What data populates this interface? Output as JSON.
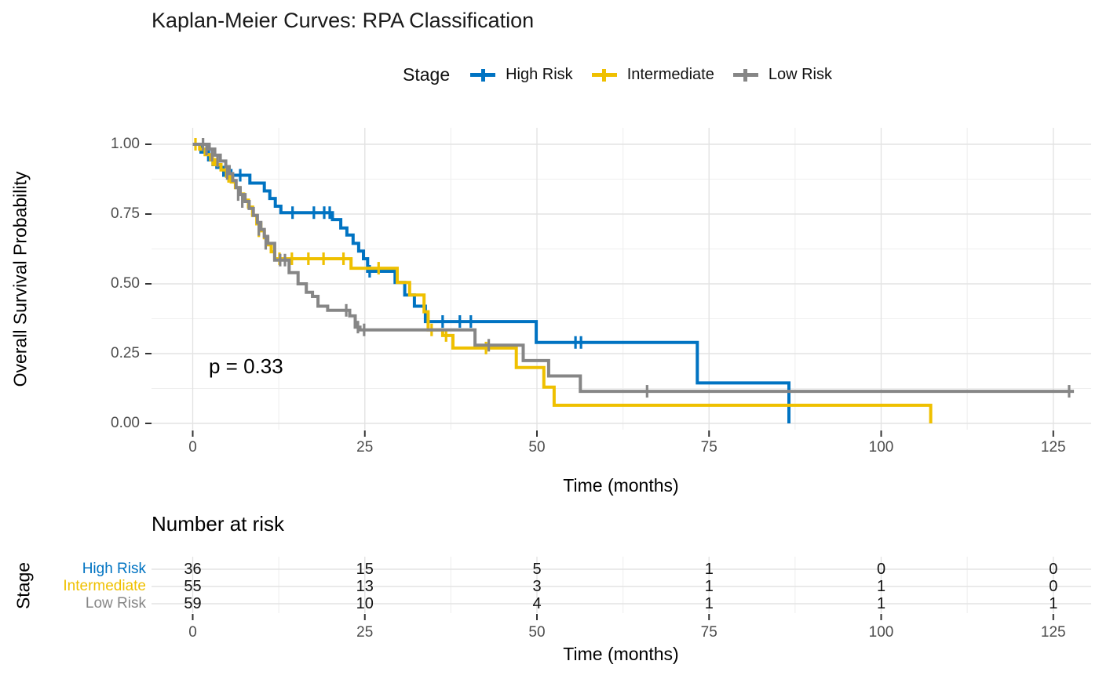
{
  "title": "Kaplan-Meier Curves: RPA Classification",
  "legend": {
    "label": "Stage",
    "items": [
      {
        "label": "High Risk"
      },
      {
        "label": "Intermediate"
      },
      {
        "label": "Low Risk"
      }
    ]
  },
  "y_axis": {
    "label": "Overall Survival Probability",
    "ticks": [
      "1.00",
      "0.75",
      "0.50",
      "0.25",
      "0.00"
    ],
    "tick_values": [
      1.0,
      0.75,
      0.5,
      0.25,
      0.0
    ]
  },
  "x_axis": {
    "label": "Time (months)",
    "ticks": [
      "0",
      "25",
      "50",
      "75",
      "100",
      "125"
    ],
    "tick_values": [
      0,
      25,
      50,
      75,
      100,
      125
    ]
  },
  "annotation": {
    "p_value": "p = 0.33"
  },
  "risk_table": {
    "title": "Number at risk",
    "axis_label": "Stage",
    "x_label": "Time (months)",
    "x_ticks": [
      "0",
      "25",
      "50",
      "75",
      "100",
      "125"
    ],
    "rows": [
      {
        "label": "High Risk",
        "values": [
          "36",
          "15",
          "5",
          "1",
          "0",
          "0"
        ]
      },
      {
        "label": "Intermediate",
        "values": [
          "55",
          "13",
          "3",
          "1",
          "1",
          "0"
        ]
      },
      {
        "label": "Low Risk",
        "values": [
          "59",
          "10",
          "4",
          "1",
          "1",
          "1"
        ]
      }
    ]
  },
  "chart_data": {
    "type": "line",
    "subtype": "kaplan-meier-step",
    "title": "Kaplan-Meier Curves: RPA Classification",
    "xlabel": "Time (months)",
    "ylabel": "Overall Survival Probability",
    "xlim": [
      0,
      130
    ],
    "ylim": [
      0,
      1
    ],
    "grid": true,
    "p_value": 0.33,
    "x_major_ticks": [
      0,
      25,
      50,
      75,
      100,
      125
    ],
    "x_minor_ticks": [
      12.5,
      37.5,
      62.5,
      87.5,
      112.5
    ],
    "y_major_ticks": [
      0,
      0.25,
      0.5,
      0.75,
      1.0
    ],
    "y_minor_ticks": [
      0.125,
      0.375,
      0.625,
      0.875
    ],
    "series": [
      {
        "name": "High Risk",
        "color": "#0073C2",
        "end": 86.6,
        "steps": [
          [
            0,
            1
          ],
          [
            1.2,
            0.972
          ],
          [
            2.3,
            0.944
          ],
          [
            3.5,
            0.917
          ],
          [
            4.5,
            0.889
          ],
          [
            8.3,
            0.861
          ],
          [
            10.4,
            0.833
          ],
          [
            11.2,
            0.806
          ],
          [
            12.0,
            0.778
          ],
          [
            12.8,
            0.755
          ],
          [
            20.3,
            0.73
          ],
          [
            21.5,
            0.7
          ],
          [
            22.4,
            0.675
          ],
          [
            23.3,
            0.645
          ],
          [
            24.1,
            0.617
          ],
          [
            24.8,
            0.59
          ],
          [
            25.4,
            0.545
          ],
          [
            29.4,
            0.505
          ],
          [
            30.8,
            0.46
          ],
          [
            32.2,
            0.42
          ],
          [
            33.8,
            0.365
          ],
          [
            49.9,
            0.29
          ],
          [
            73.3,
            0.145
          ],
          [
            86.6,
            0
          ]
        ],
        "censors": [
          [
            2.9,
            0.944
          ],
          [
            5.6,
            0.889
          ],
          [
            6.9,
            0.889
          ],
          [
            14.5,
            0.755
          ],
          [
            17.6,
            0.755
          ],
          [
            19.1,
            0.755
          ],
          [
            19.9,
            0.755
          ],
          [
            25.7,
            0.545
          ],
          [
            36.3,
            0.365
          ],
          [
            38.8,
            0.365
          ],
          [
            40.4,
            0.365
          ],
          [
            55.6,
            0.29
          ],
          [
            56.4,
            0.29
          ]
        ]
      },
      {
        "name": "Intermediate",
        "color": "#EFC000",
        "end": 107.2,
        "steps": [
          [
            0,
            1
          ],
          [
            1.0,
            0.982
          ],
          [
            1.8,
            0.963
          ],
          [
            2.6,
            0.945
          ],
          [
            3.3,
            0.927
          ],
          [
            4.1,
            0.908
          ],
          [
            4.9,
            0.885
          ],
          [
            5.6,
            0.865
          ],
          [
            6.2,
            0.845
          ],
          [
            6.8,
            0.822
          ],
          [
            7.4,
            0.8
          ],
          [
            8.1,
            0.775
          ],
          [
            8.7,
            0.745
          ],
          [
            9.3,
            0.715
          ],
          [
            9.9,
            0.69
          ],
          [
            10.4,
            0.665
          ],
          [
            10.9,
            0.64
          ],
          [
            11.4,
            0.615
          ],
          [
            11.9,
            0.59
          ],
          [
            23.0,
            0.556
          ],
          [
            29.7,
            0.505
          ],
          [
            31.5,
            0.46
          ],
          [
            33.6,
            0.4
          ],
          [
            34.2,
            0.335
          ],
          [
            36.3,
            0.315
          ],
          [
            37.8,
            0.27
          ],
          [
            47.0,
            0.2
          ],
          [
            51.0,
            0.13
          ],
          [
            52.5,
            0.065
          ],
          [
            107.2,
            0
          ]
        ],
        "censors": [
          [
            0.4,
            1
          ],
          [
            2.9,
            0.945
          ],
          [
            5.2,
            0.885
          ],
          [
            9.6,
            0.69
          ],
          [
            12.6,
            0.59
          ],
          [
            14.4,
            0.59
          ],
          [
            16.8,
            0.59
          ],
          [
            19.0,
            0.59
          ],
          [
            21.9,
            0.59
          ],
          [
            27.0,
            0.556
          ],
          [
            34.7,
            0.335
          ],
          [
            36.8,
            0.315
          ],
          [
            42.6,
            0.27
          ]
        ]
      },
      {
        "name": "Low Risk",
        "color": "#868686",
        "end": 128.0,
        "steps": [
          [
            0,
            1
          ],
          [
            2.4,
            0.983
          ],
          [
            3.2,
            0.961
          ],
          [
            4.0,
            0.94
          ],
          [
            4.8,
            0.92
          ],
          [
            5.3,
            0.895
          ],
          [
            5.8,
            0.87
          ],
          [
            6.3,
            0.845
          ],
          [
            6.9,
            0.82
          ],
          [
            7.6,
            0.795
          ],
          [
            8.2,
            0.77
          ],
          [
            8.8,
            0.745
          ],
          [
            9.4,
            0.72
          ],
          [
            9.9,
            0.695
          ],
          [
            10.4,
            0.67
          ],
          [
            10.9,
            0.645
          ],
          [
            11.9,
            0.585
          ],
          [
            14.0,
            0.54
          ],
          [
            15.3,
            0.5
          ],
          [
            16.5,
            0.47
          ],
          [
            17.4,
            0.455
          ],
          [
            18.2,
            0.42
          ],
          [
            19.6,
            0.405
          ],
          [
            22.8,
            0.385
          ],
          [
            23.6,
            0.345
          ],
          [
            24.3,
            0.335
          ],
          [
            41.0,
            0.28
          ],
          [
            48.0,
            0.225
          ],
          [
            51.7,
            0.17
          ],
          [
            56.3,
            0.115
          ]
        ],
        "censors": [
          [
            1.5,
            1
          ],
          [
            2.0,
            0.983
          ],
          [
            2.8,
            0.961
          ],
          [
            3.6,
            0.94
          ],
          [
            5.0,
            0.895
          ],
          [
            6.6,
            0.82
          ],
          [
            7.2,
            0.795
          ],
          [
            9.6,
            0.695
          ],
          [
            10.6,
            0.645
          ],
          [
            12.7,
            0.585
          ],
          [
            13.4,
            0.585
          ],
          [
            22.3,
            0.405
          ],
          [
            24.0,
            0.345
          ],
          [
            24.9,
            0.335
          ],
          [
            43.0,
            0.28
          ],
          [
            66.0,
            0.115
          ],
          [
            127.3,
            0.115
          ]
        ]
      }
    ]
  },
  "colors": {
    "grid_major": "#e3e3e3",
    "grid_minor": "#efefef",
    "tick": "#333333",
    "tick_text": "#4d4d4d"
  }
}
